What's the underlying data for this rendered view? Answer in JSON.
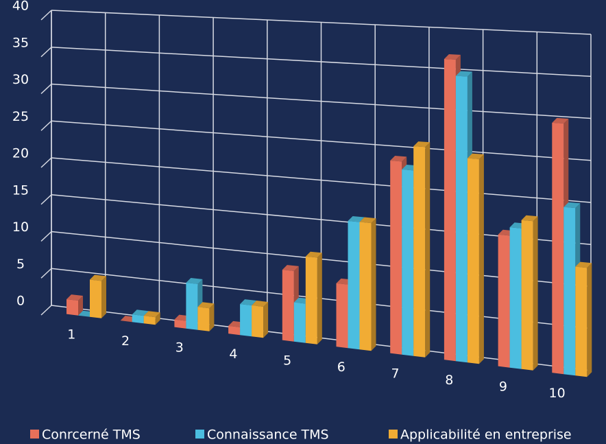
{
  "chart_data": {
    "type": "bar3d",
    "categories": [
      "1",
      "2",
      "3",
      "4",
      "5",
      "6",
      "7",
      "8",
      "9",
      "10"
    ],
    "series": [
      {
        "name": "Conrcerné TMS",
        "color": "#e8705a",
        "values": [
          2,
          0,
          1,
          1,
          9,
          8,
          24,
          37,
          16,
          30
        ]
      },
      {
        "name": "Connaissance TMS",
        "color": "#4bbee0",
        "values": [
          0,
          1,
          6,
          4,
          5,
          16,
          23,
          35,
          17,
          20
        ]
      },
      {
        "name": "Applicabilité en entreprise",
        "color": "#f1ac34",
        "values": [
          5,
          1,
          3,
          4,
          11,
          16,
          26,
          25,
          18,
          13
        ]
      }
    ],
    "ylim": [
      0,
      40
    ],
    "yticks": [
      0,
      5,
      10,
      15,
      20,
      25,
      30,
      35,
      40
    ],
    "grid": true,
    "legend": "bottom"
  }
}
